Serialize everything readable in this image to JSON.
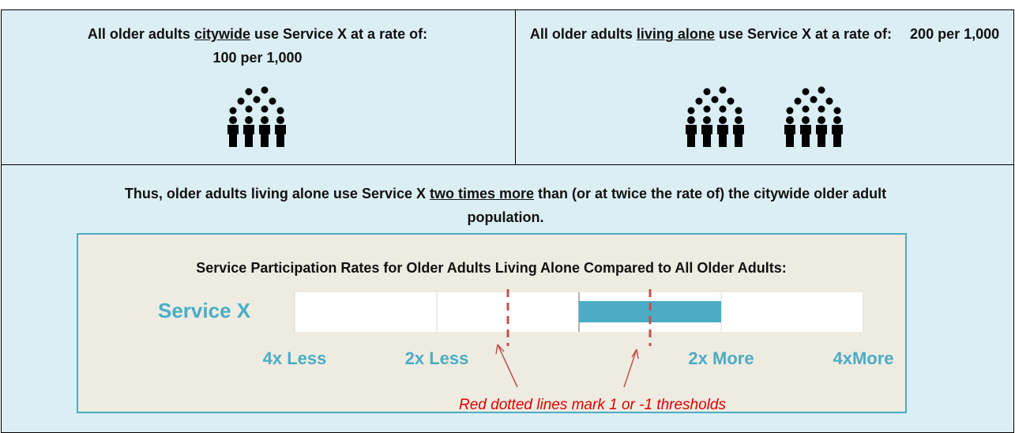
{
  "cells": [
    {
      "before": "All older adults ",
      "underlined": "citywide",
      "after": " use Service X at a rate of:",
      "rate": "100 per 1,000"
    },
    {
      "before": "All older adults ",
      "underlined": "living alone",
      "after": " use Service X at a rate of:",
      "rate": "200 per 1,000"
    }
  ],
  "conclusion": {
    "before": "Thus, older adults living alone use Service X ",
    "underlined": "two times more",
    "after": " than (or at twice the rate of) the citywide older adult population."
  },
  "chart_data": {
    "type": "bar",
    "title": "Service Participation Rates for Older Adults Living Alone Compared to All Older Adults:",
    "categories": [
      "Service X"
    ],
    "values": [
      2
    ],
    "color": "#4bacc6",
    "xlim": [
      -4,
      4
    ],
    "xticks": [
      {
        "value": -4,
        "label": "4x Less"
      },
      {
        "value": -2,
        "label": "2x Less"
      },
      {
        "value": 2,
        "label": "2x More"
      },
      {
        "value": 4,
        "label": "4xMore"
      }
    ],
    "thresholds": [
      -1,
      1
    ],
    "threshold_color": "#c0504d",
    "annotation": "Red dotted lines mark 1 or -1 thresholds"
  }
}
